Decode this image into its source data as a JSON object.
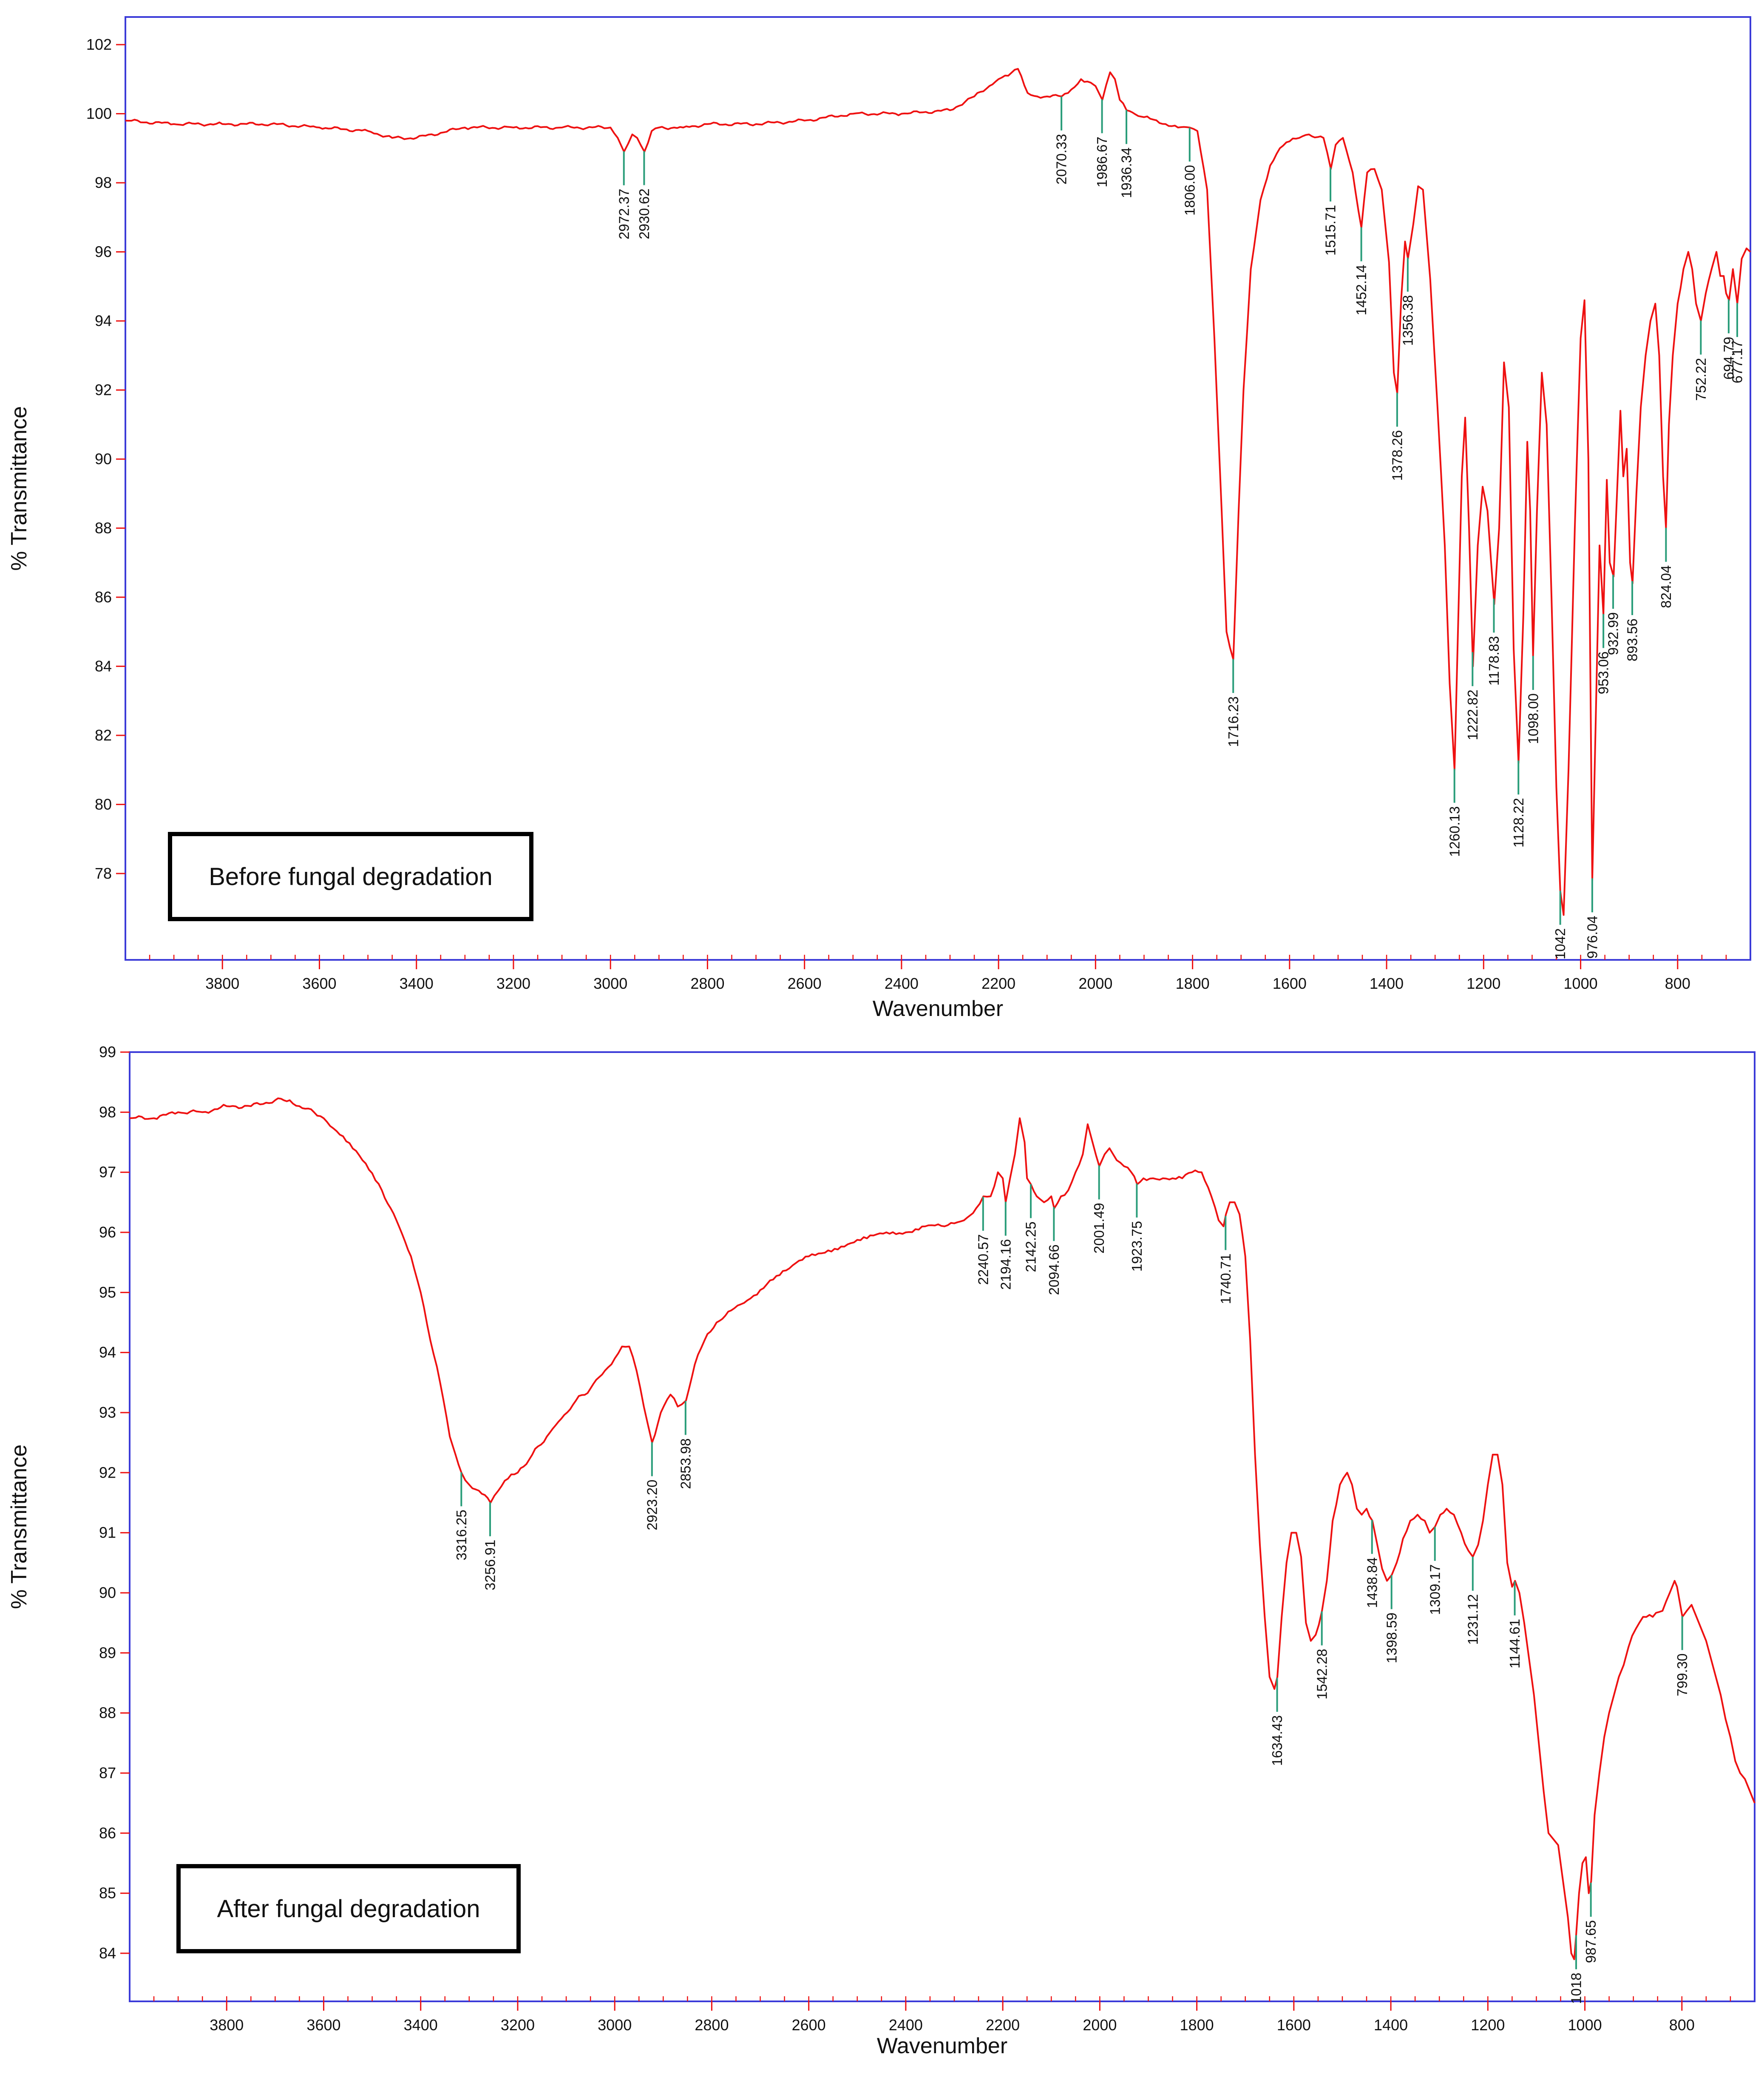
{
  "charts": [
    {
      "inset_label": "Before fungal degradation",
      "ylabel": "% Transmittance",
      "xlabel": "Wavenumber"
    },
    {
      "inset_label": "After fungal degradation",
      "ylabel": "% Transmittance",
      "xlabel": "Wavenumber"
    }
  ],
  "colors": {
    "trace": "#ee1111",
    "frame": "#3b3bd8",
    "peak_marker": "#2a9d7a",
    "tick": "#ee1111",
    "text": "#111111"
  },
  "chart_data": [
    {
      "type": "line",
      "title": "",
      "inset_label": "Before fungal degradation",
      "xlabel": "Wavenumber",
      "ylabel": "% Transmittance",
      "x_reversed": true,
      "xlim": [
        4000,
        650
      ],
      "ylim": [
        75.5,
        102.8
      ],
      "xticks": [
        3800,
        3600,
        3400,
        3200,
        3000,
        2800,
        2600,
        2400,
        2200,
        2000,
        1800,
        1600,
        1400,
        1200,
        1000,
        800
      ],
      "yticks": [
        78,
        80,
        82,
        84,
        86,
        88,
        90,
        92,
        94,
        96,
        98,
        100,
        102
      ],
      "grid": false,
      "series": [
        {
          "x": [
            4000,
            3900,
            3800,
            3700,
            3600,
            3500,
            3450,
            3400,
            3300,
            3200,
            3100,
            3000,
            2985,
            2972,
            2955,
            2945,
            2930,
            2915,
            2900,
            2850,
            2800,
            2700,
            2600,
            2500,
            2400,
            2300,
            2250,
            2200,
            2180,
            2160,
            2140,
            2120,
            2100,
            2070,
            2050,
            2030,
            2010,
            2000,
            1986,
            1970,
            1960,
            1950,
            1936,
            1900,
            1830,
            1806,
            1790,
            1770,
            1755,
            1740,
            1730,
            1716,
            1705,
            1695,
            1680,
            1660,
            1640,
            1620,
            1600,
            1580,
            1560,
            1530,
            1515,
            1505,
            1490,
            1470,
            1452,
            1440,
            1425,
            1410,
            1395,
            1385,
            1378,
            1370,
            1362,
            1356,
            1345,
            1335,
            1325,
            1310,
            1295,
            1280,
            1270,
            1260,
            1252,
            1245,
            1238,
            1230,
            1222,
            1212,
            1202,
            1192,
            1178,
            1168,
            1158,
            1148,
            1138,
            1128,
            1118,
            1110,
            1104,
            1098,
            1090,
            1080,
            1070,
            1060,
            1050,
            1042,
            1035,
            1025,
            1012,
            1000,
            992,
            984,
            976,
            968,
            961,
            953,
            946,
            940,
            932,
            925,
            918,
            912,
            905,
            898,
            893,
            885,
            876,
            866,
            856,
            846,
            838,
            830,
            824,
            818,
            810,
            800,
            788,
            778,
            770,
            762,
            752,
            742,
            730,
            720,
            712,
            705,
            700,
            694,
            686,
            677,
            668,
            658,
            650
          ],
          "y": [
            99.8,
            99.7,
            99.7,
            99.7,
            99.6,
            99.5,
            99.3,
            99.3,
            99.6,
            99.6,
            99.6,
            99.6,
            99.3,
            98.9,
            99.4,
            99.3,
            98.9,
            99.5,
            99.6,
            99.6,
            99.7,
            99.7,
            99.8,
            100.0,
            100.0,
            100.1,
            100.5,
            101.0,
            101.1,
            101.3,
            100.6,
            100.5,
            100.5,
            100.5,
            100.7,
            101.0,
            100.9,
            100.8,
            100.4,
            101.2,
            101.0,
            100.4,
            100.1,
            99.9,
            99.6,
            99.6,
            99.5,
            97.8,
            93.5,
            88.5,
            85.0,
            84.2,
            88.5,
            92.0,
            95.5,
            97.5,
            98.5,
            99.0,
            99.2,
            99.3,
            99.4,
            99.3,
            98.4,
            99.1,
            99.3,
            98.3,
            96.7,
            98.3,
            98.4,
            97.8,
            95.7,
            92.5,
            91.9,
            94.6,
            96.3,
            95.8,
            96.8,
            97.9,
            97.8,
            95.2,
            91.5,
            87.5,
            83.5,
            81.0,
            85.5,
            89.5,
            91.2,
            88.0,
            84.0,
            87.5,
            89.2,
            88.5,
            85.8,
            88.0,
            92.8,
            91.5,
            84.5,
            81.2,
            85.5,
            90.5,
            88.5,
            84.3,
            88.5,
            92.5,
            91.0,
            86.0,
            80.5,
            77.5,
            76.8,
            81.0,
            88.0,
            93.5,
            94.6,
            90.0,
            77.8,
            83.0,
            87.5,
            85.5,
            89.4,
            87.0,
            86.6,
            89.0,
            91.4,
            89.5,
            90.3,
            87.0,
            86.4,
            89.0,
            91.5,
            93.0,
            94.0,
            94.5,
            93.0,
            89.5,
            88.0,
            91.0,
            93.0,
            94.5,
            95.5,
            96.0,
            95.5,
            94.5,
            94.0,
            94.8,
            95.5,
            96.0,
            95.3,
            95.3,
            94.8,
            94.6,
            95.5,
            94.5,
            95.8,
            96.1,
            96.0
          ]
        }
      ],
      "peaks": [
        "2972.37",
        "2930.62",
        "2070.33",
        "1986.67",
        "1936.34",
        "1806.00",
        "1716.23",
        "1515.71",
        "1452.14",
        "1356.38",
        "1378.26",
        "1260.13",
        "1222.82",
        "1178.83",
        "1128.22",
        "1098.00",
        "1042",
        "976.04",
        "953.06",
        "932.99",
        "893.56",
        "824.04",
        "752.22",
        "694.79",
        "677.17"
      ]
    },
    {
      "type": "line",
      "title": "",
      "inset_label": "After fungal degradation",
      "xlabel": "Wavenumber",
      "ylabel": "% Transmittance",
      "x_reversed": true,
      "xlim": [
        4000,
        650
      ],
      "ylim": [
        83.2,
        99.0
      ],
      "xticks": [
        3800,
        3600,
        3400,
        3200,
        3000,
        2800,
        2600,
        2400,
        2200,
        2000,
        1800,
        1600,
        1400,
        1200,
        1000,
        800
      ],
      "yticks": [
        84,
        85,
        86,
        87,
        88,
        89,
        90,
        91,
        92,
        93,
        94,
        95,
        96,
        97,
        98,
        99
      ],
      "grid": false,
      "series": [
        {
          "x": [
            4000,
            3950,
            3900,
            3850,
            3800,
            3750,
            3700,
            3670,
            3650,
            3620,
            3600,
            3560,
            3520,
            3480,
            3450,
            3420,
            3400,
            3380,
            3360,
            3340,
            3316,
            3300,
            3280,
            3256,
            3240,
            3220,
            3200,
            3170,
            3140,
            3110,
            3080,
            3050,
            3020,
            3000,
            2985,
            2970,
            2955,
            2940,
            2923,
            2905,
            2885,
            2870,
            2853,
            2835,
            2815,
            2790,
            2760,
            2720,
            2680,
            2640,
            2600,
            2560,
            2520,
            2480,
            2440,
            2400,
            2360,
            2320,
            2280,
            2255,
            2240,
            2225,
            2210,
            2200,
            2194,
            2185,
            2175,
            2165,
            2155,
            2150,
            2142,
            2130,
            2115,
            2100,
            2094,
            2080,
            2065,
            2050,
            2035,
            2025,
            2015,
            2001,
            1990,
            1980,
            1965,
            1950,
            1935,
            1923,
            1910,
            1890,
            1870,
            1850,
            1830,
            1810,
            1790,
            1770,
            1755,
            1745,
            1740,
            1732,
            1722,
            1712,
            1700,
            1690,
            1680,
            1670,
            1660,
            1650,
            1640,
            1634,
            1625,
            1615,
            1605,
            1595,
            1585,
            1575,
            1565,
            1555,
            1542,
            1532,
            1520,
            1505,
            1490,
            1480,
            1470,
            1460,
            1450,
            1438,
            1428,
            1418,
            1408,
            1398,
            1388,
            1375,
            1360,
            1345,
            1330,
            1320,
            1309,
            1298,
            1285,
            1270,
            1255,
            1240,
            1231,
            1220,
            1210,
            1200,
            1190,
            1180,
            1170,
            1160,
            1150,
            1144,
            1135,
            1125,
            1115,
            1105,
            1095,
            1085,
            1075,
            1065,
            1055,
            1045,
            1035,
            1028,
            1022,
            1018,
            1012,
            1005,
            998,
            992,
            987,
            980,
            970,
            960,
            950,
            940,
            930,
            920,
            910,
            895,
            880,
            860,
            840,
            825,
            815,
            810,
            799,
            790,
            780,
            770,
            760,
            750,
            740,
            730,
            720,
            710,
            700,
            690,
            680,
            670,
            660,
            650
          ],
          "y": [
            97.9,
            97.9,
            98.0,
            98.0,
            98.1,
            98.1,
            98.2,
            98.2,
            98.1,
            98.0,
            97.9,
            97.6,
            97.2,
            96.7,
            96.2,
            95.6,
            95.0,
            94.2,
            93.5,
            92.6,
            92.0,
            91.8,
            91.7,
            91.5,
            91.7,
            91.9,
            92.0,
            92.3,
            92.6,
            92.9,
            93.2,
            93.4,
            93.7,
            93.9,
            94.1,
            94.1,
            93.7,
            93.1,
            92.5,
            93.0,
            93.3,
            93.1,
            93.2,
            93.8,
            94.2,
            94.5,
            94.7,
            94.9,
            95.2,
            95.4,
            95.6,
            95.7,
            95.8,
            95.9,
            96.0,
            96.0,
            96.1,
            96.1,
            96.2,
            96.4,
            96.6,
            96.6,
            97.0,
            96.9,
            96.5,
            96.9,
            97.3,
            97.9,
            97.5,
            96.9,
            96.8,
            96.6,
            96.5,
            96.6,
            96.4,
            96.6,
            96.7,
            97.0,
            97.3,
            97.8,
            97.5,
            97.1,
            97.3,
            97.4,
            97.2,
            97.1,
            97.0,
            96.8,
            96.9,
            96.9,
            96.9,
            96.9,
            96.9,
            97.0,
            97.0,
            96.6,
            96.2,
            96.1,
            96.3,
            96.5,
            96.5,
            96.3,
            95.6,
            94.2,
            92.3,
            90.8,
            89.6,
            88.6,
            88.4,
            88.6,
            89.6,
            90.5,
            91.0,
            91.0,
            90.6,
            89.5,
            89.2,
            89.3,
            89.7,
            90.2,
            91.2,
            91.8,
            92.0,
            91.8,
            91.4,
            91.3,
            91.4,
            91.2,
            90.8,
            90.4,
            90.2,
            90.3,
            90.5,
            90.9,
            91.2,
            91.3,
            91.2,
            91.0,
            91.1,
            91.3,
            91.4,
            91.3,
            91.0,
            90.7,
            90.6,
            90.8,
            91.2,
            91.8,
            92.3,
            92.3,
            91.8,
            90.5,
            90.1,
            90.2,
            90.0,
            89.5,
            88.9,
            88.3,
            87.5,
            86.7,
            86.0,
            85.9,
            85.8,
            85.2,
            84.6,
            84.0,
            83.9,
            84.3,
            85.0,
            85.5,
            85.6,
            85.0,
            85.2,
            86.3,
            87.0,
            87.6,
            88.0,
            88.3,
            88.6,
            88.8,
            89.1,
            89.4,
            89.6,
            89.6,
            89.7,
            90.0,
            90.2,
            90.1,
            89.6,
            89.7,
            89.8,
            89.6,
            89.4,
            89.2,
            88.9,
            88.6,
            88.3,
            87.9,
            87.6,
            87.2,
            87.0,
            86.9,
            86.7,
            86.5
          ]
        }
      ],
      "peaks": [
        "3316.25",
        "3256.91",
        "2923.20",
        "2853.98",
        "2240.57",
        "2194.16",
        "2142.25",
        "2094.66",
        "2001.49",
        "1923.75",
        "1740.71",
        "1634.43",
        "1542.28",
        "1438.84",
        "1398.59",
        "1309.17",
        "1231.12",
        "1144.61",
        "1018",
        "987.65",
        "799.30"
      ]
    }
  ]
}
